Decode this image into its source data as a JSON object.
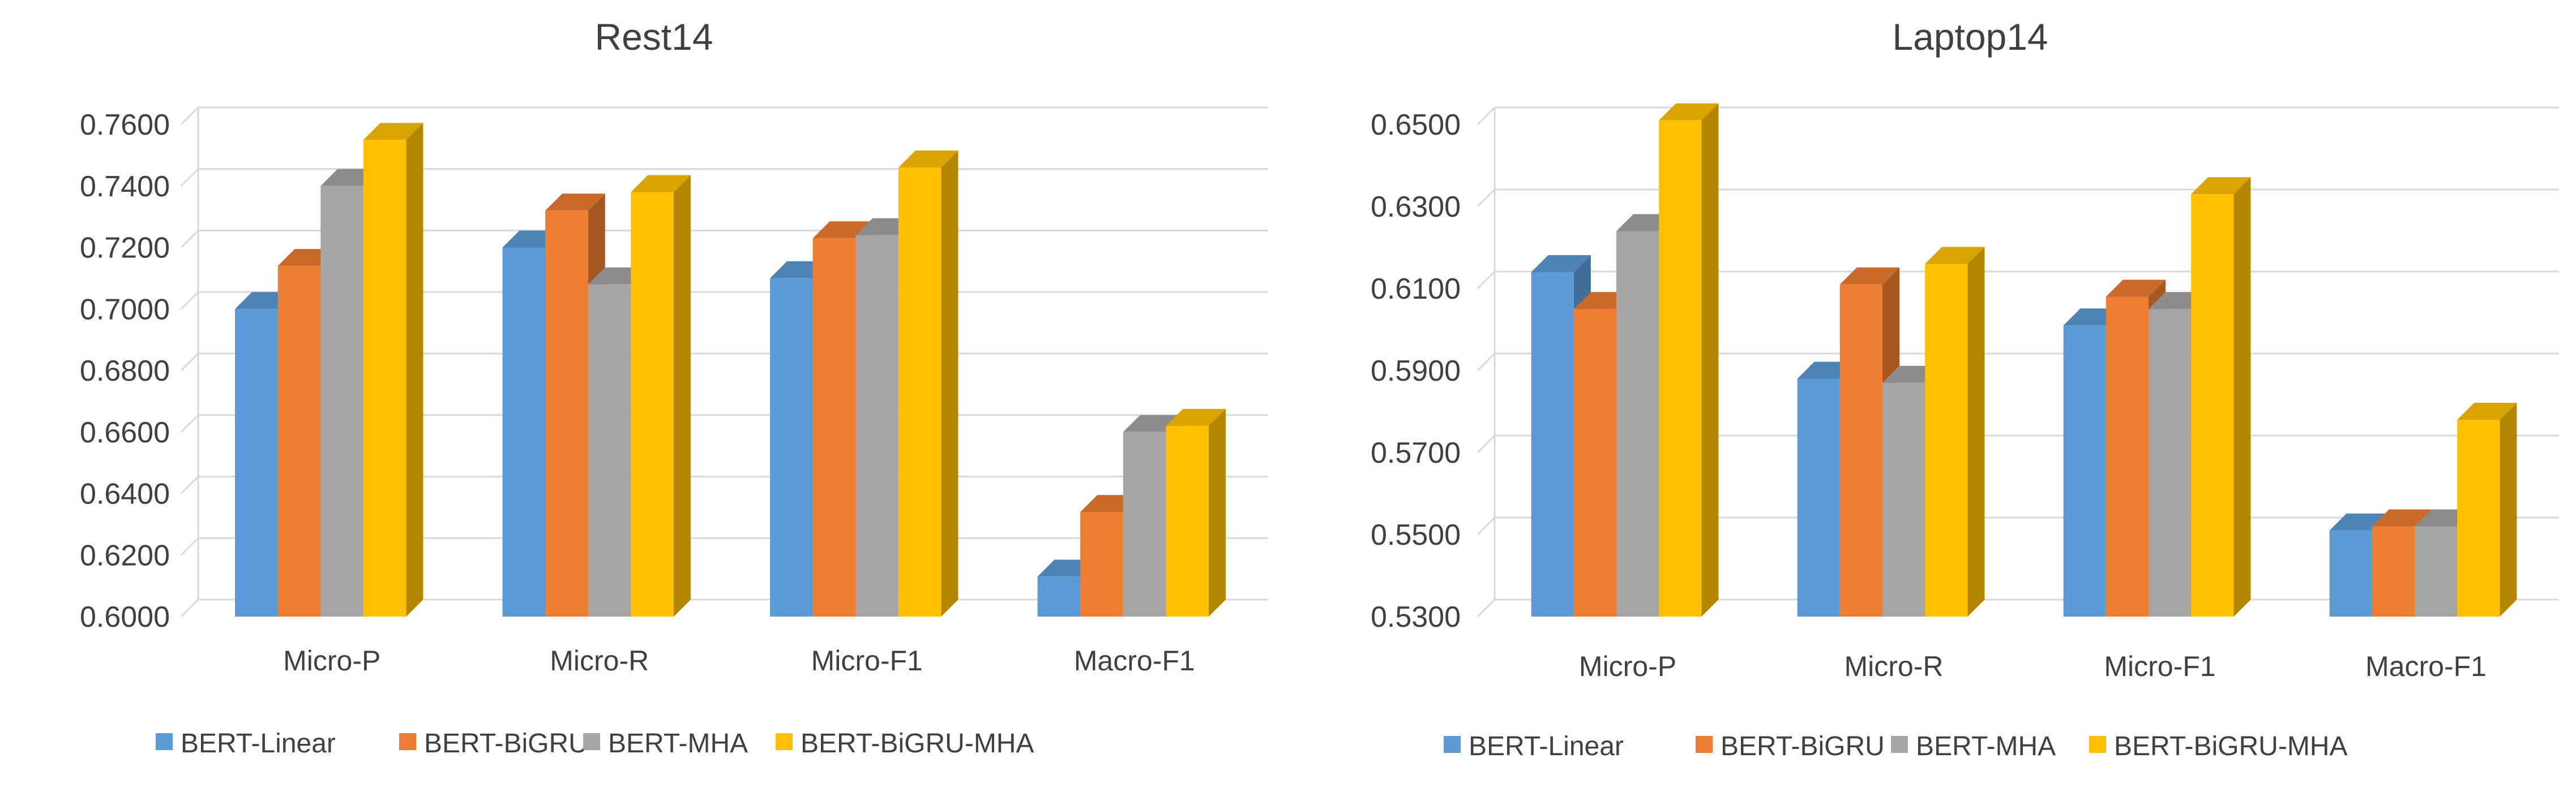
{
  "chart_data": [
    {
      "type": "bar",
      "title": "Rest14",
      "xlabel": "",
      "ylabel": "",
      "ylim": [
        0.6,
        0.76
      ],
      "yticks": [
        "0.6000",
        "0.6200",
        "0.6400",
        "0.6600",
        "0.6800",
        "0.7000",
        "0.7200",
        "0.7400",
        "0.7600"
      ],
      "grid": true,
      "legend_position": "bottom",
      "categories": [
        "Micro-P",
        "Micro-R",
        "Micro-F1",
        "Macro-F1"
      ],
      "series": [
        {
          "name": "BERT-Linear",
          "color": "#5b9bd5",
          "values": [
            0.7,
            0.72,
            0.71,
            0.613
          ]
        },
        {
          "name": "BERT-BiGRU",
          "color": "#ed7d31",
          "values": [
            0.714,
            0.732,
            0.723,
            0.634
          ]
        },
        {
          "name": "BERT-MHA",
          "color": "#a5a5a5",
          "values": [
            0.74,
            0.708,
            0.724,
            0.66
          ]
        },
        {
          "name": "BERT-BiGRU-MHA",
          "color": "#ffc000",
          "values": [
            0.755,
            0.738,
            0.746,
            0.662
          ]
        }
      ]
    },
    {
      "type": "bar",
      "title": "Laptop14",
      "xlabel": "",
      "ylabel": "",
      "ylim": [
        0.53,
        0.65
      ],
      "yticks": [
        "0.5300",
        "0.5500",
        "0.5700",
        "0.5900",
        "0.6100",
        "0.6300",
        "0.6500"
      ],
      "grid": true,
      "legend_position": "bottom",
      "categories": [
        "Micro-P",
        "Micro-R",
        "Micro-F1",
        "Macro-F1"
      ],
      "series": [
        {
          "name": "BERT-Linear",
          "color": "#5b9bd5",
          "values": [
            0.614,
            0.588,
            0.601,
            0.551
          ]
        },
        {
          "name": "BERT-BiGRU",
          "color": "#ed7d31",
          "values": [
            0.605,
            0.611,
            0.608,
            0.552
          ]
        },
        {
          "name": "BERT-MHA",
          "color": "#a5a5a5",
          "values": [
            0.624,
            0.587,
            0.605,
            0.552
          ]
        },
        {
          "name": "BERT-BiGRU-MHA",
          "color": "#ffc000",
          "values": [
            0.651,
            0.616,
            0.633,
            0.578
          ]
        }
      ]
    }
  ]
}
